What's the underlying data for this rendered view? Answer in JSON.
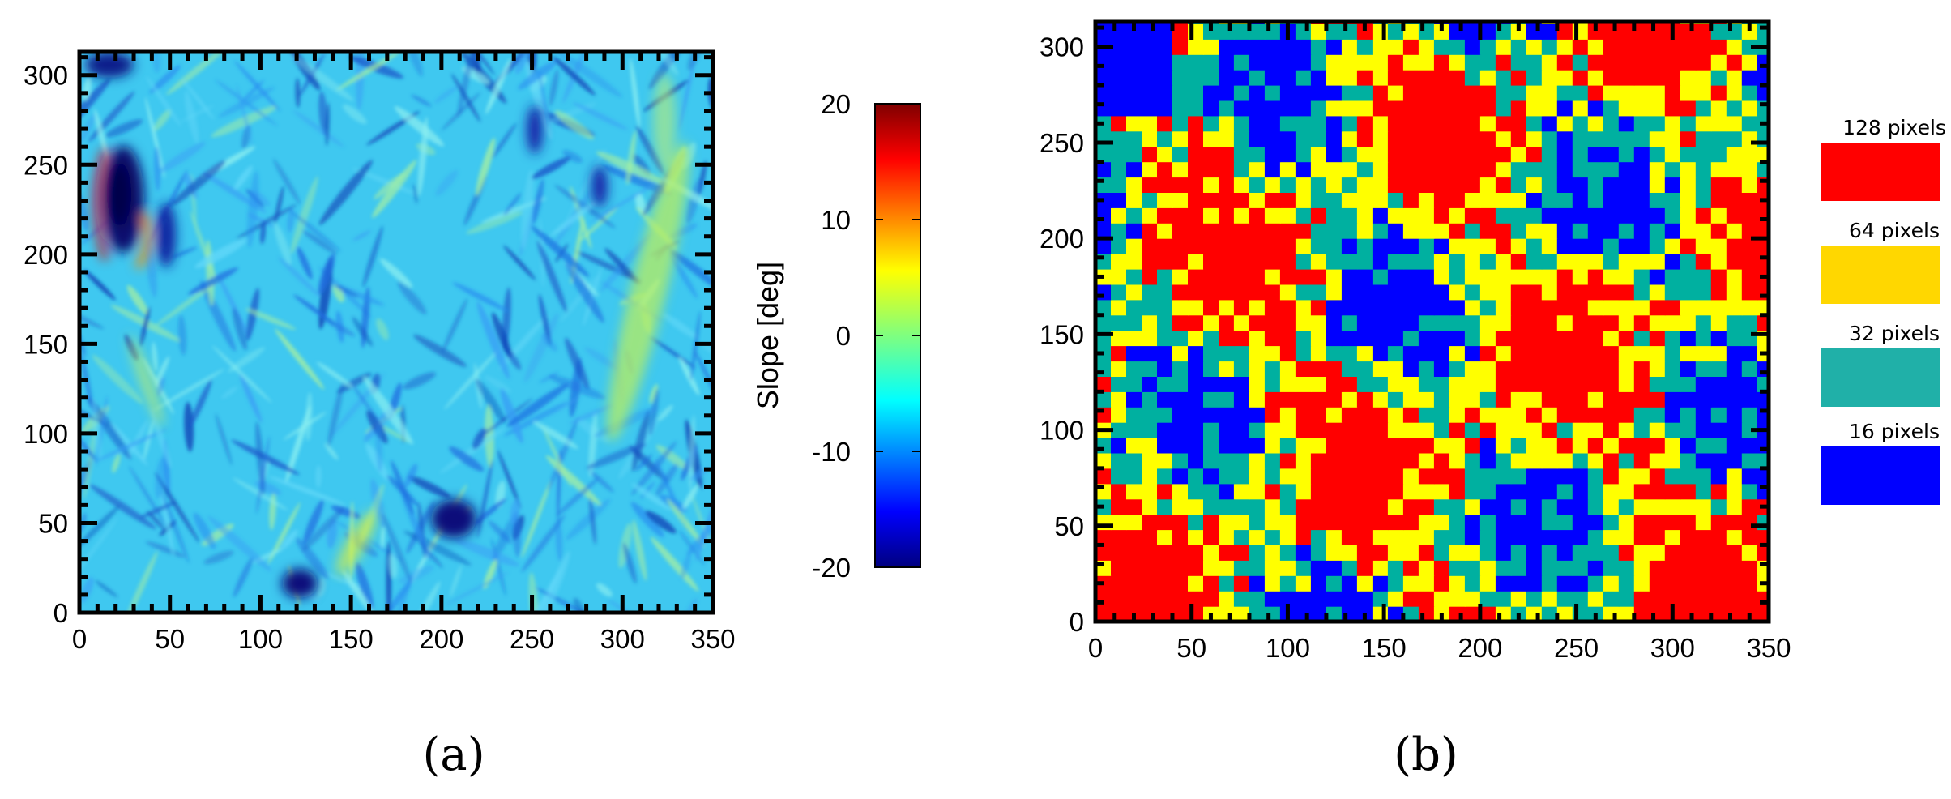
{
  "chart_data": [
    {
      "id": "a",
      "type": "heatmap",
      "panel_label": "(a)",
      "xlim": [
        0,
        350
      ],
      "ylim": [
        0,
        313
      ],
      "xticks": [
        0,
        50,
        100,
        150,
        200,
        250,
        300,
        350
      ],
      "yticks": [
        0,
        50,
        100,
        150,
        200,
        250,
        300
      ],
      "colorbar": {
        "label": "Slope [deg]",
        "range": [
          -20,
          20
        ],
        "ticks": [
          20,
          10,
          0,
          -10,
          -20
        ],
        "colormap": "jet"
      },
      "base_color": "#3fc8f0",
      "features": [
        {
          "kind": "dark-blob",
          "x": 25,
          "y": 232,
          "value": -20
        },
        {
          "kind": "red-edge",
          "x": 12,
          "y": 225,
          "value": 18
        },
        {
          "kind": "orange-streak",
          "x": 40,
          "y": 200,
          "value": 14
        },
        {
          "kind": "yellow-band",
          "x": 320,
          "y": 180,
          "value": 3
        },
        {
          "kind": "dark-spot",
          "x": 200,
          "y": 60,
          "value": -18
        },
        {
          "kind": "dark-spot",
          "x": 130,
          "y": 20,
          "value": -18
        }
      ]
    },
    {
      "id": "b",
      "type": "heatmap",
      "panel_label": "(b)",
      "xlim": [
        0,
        350
      ],
      "ylim": [
        0,
        313
      ],
      "xticks": [
        0,
        50,
        100,
        150,
        200,
        250,
        300,
        350
      ],
      "yticks": [
        0,
        50,
        100,
        150,
        200,
        250,
        300
      ],
      "cell_size": 8,
      "categories": [
        {
          "label": "128 pixels",
          "color": "#ff0000"
        },
        {
          "label": "64 pixels",
          "color": "#ffff00"
        },
        {
          "label": "32 pixels",
          "color": "#00b0a0"
        },
        {
          "label": "16 pixels",
          "color": "#0000ff"
        }
      ],
      "legend": {
        "placement": "right",
        "labels": [
          "128 pixels",
          "64 pixels",
          "32 pixels",
          "16 pixels"
        ],
        "colors": [
          "#ff0000",
          "#ffd700",
          "#20b0a8",
          "#0000ff"
        ]
      }
    }
  ]
}
